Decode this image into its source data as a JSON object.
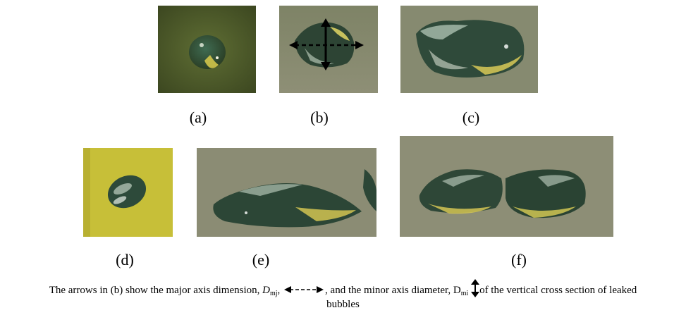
{
  "panels": [
    {
      "id": "a",
      "label": "(a)"
    },
    {
      "id": "b",
      "label": "(b)"
    },
    {
      "id": "c",
      "label": "(c)"
    },
    {
      "id": "d",
      "label": "(d)"
    },
    {
      "id": "e",
      "label": "(e)"
    },
    {
      "id": "f",
      "label": "(f)"
    }
  ],
  "caption": {
    "prefix": "The arrows in (b) show the major axis dimension, ",
    "dmj_symbol": "D",
    "dmj_sub": "mj",
    "dmj_sep": ",",
    "after_major_arrow": ", and the minor axis diameter, ",
    "dmi_symbol": "D",
    "dmi_sub": "mi",
    "suffix": "of the vertical cross section of leaked",
    "line2": "bubbles"
  },
  "colors": {
    "water_green_dark": "#4d5a2a",
    "water_grey": "#8f8f78",
    "yellow_bg": "#c9c23a"
  }
}
